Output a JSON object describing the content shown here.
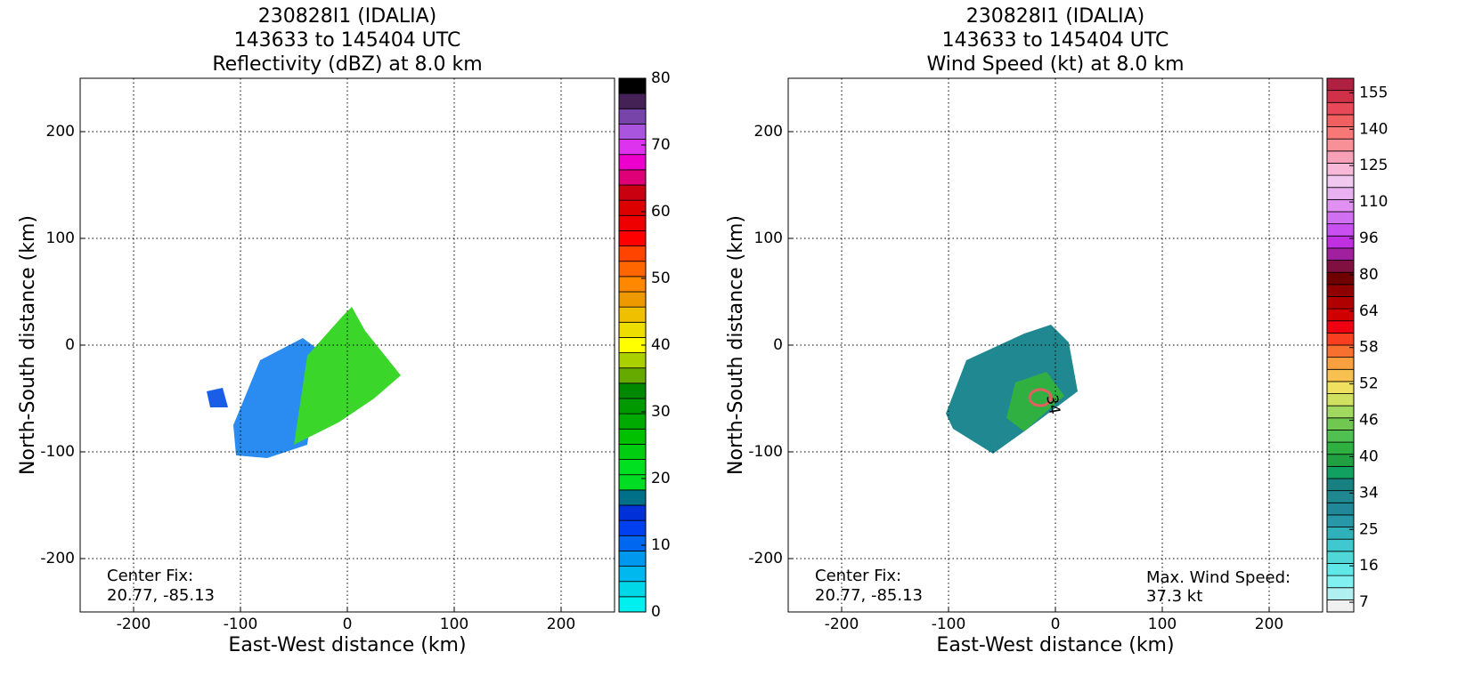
{
  "chart_data": [
    {
      "type": "heatmap",
      "title": [
        "230828I1 (IDALIA)",
        "143633 to 145404 UTC",
        "Reflectivity (dBZ) at 8.0 km"
      ],
      "xlabel": "East-West distance (km)",
      "ylabel": "North-South distance (km)",
      "xlim": [
        -250,
        250
      ],
      "ylim": [
        -250,
        250
      ],
      "xticks": [
        -200,
        -100,
        0,
        100,
        200
      ],
      "yticks": [
        -200,
        -100,
        0,
        100,
        200
      ],
      "grid": true,
      "annotations": [
        "Center Fix:",
        "20.77, -85.13"
      ],
      "colorbar": {
        "lim": [
          0,
          80
        ],
        "ticks": [
          0,
          10,
          20,
          30,
          40,
          50,
          60,
          70,
          80
        ],
        "colors": [
          "#00f0f0",
          "#00d8e8",
          "#00b8ee",
          "#0098ee",
          "#0068f0",
          "#0040f0",
          "#0030d8",
          "#007088",
          "#00dd22",
          "#00e020",
          "#00cc10",
          "#00c000",
          "#00aa00",
          "#009900",
          "#008800",
          "#66aa00",
          "#aad000",
          "#ffff00",
          "#eedd00",
          "#eec000",
          "#ee9900",
          "#ff8800",
          "#ff6600",
          "#ff4400",
          "#ff0000",
          "#ee0000",
          "#dd0000",
          "#c80010",
          "#dd0077",
          "#ee00cc",
          "#dd33ee",
          "#aa55dd",
          "#7744aa",
          "#442255",
          "#000000"
        ]
      }
    },
    {
      "type": "heatmap",
      "title": [
        "230828I1 (IDALIA)",
        "143633 to 145404 UTC",
        "Wind Speed (kt) at 8.0 km"
      ],
      "xlabel": "East-West distance (km)",
      "ylabel": "North-South distance (km)",
      "xlim": [
        -250,
        250
      ],
      "ylim": [
        -250,
        250
      ],
      "xticks": [
        -200,
        -100,
        0,
        100,
        200
      ],
      "yticks": [
        -200,
        -100,
        0,
        100,
        200
      ],
      "grid": true,
      "annotations": [
        "Center Fix:",
        "20.77, -85.13",
        "Max. Wind Speed:",
        "37.3 kt",
        "34"
      ],
      "colorbar": {
        "ticks": [
          7,
          16,
          25,
          34,
          40,
          46,
          52,
          58,
          64,
          80,
          96,
          110,
          125,
          140,
          155
        ],
        "colors": [
          "#f0f0f0",
          "#b0f0f0",
          "#80f0f0",
          "#60e8e8",
          "#50d8d8",
          "#40c8d0",
          "#30b0b8",
          "#2898a8",
          "#208898",
          "#208890",
          "#188080",
          "#10a060",
          "#20a040",
          "#30b040",
          "#50c050",
          "#70c850",
          "#a0d860",
          "#d0e060",
          "#f0e060",
          "#f8c050",
          "#f8a040",
          "#f87030",
          "#f84020",
          "#f00010",
          "#d00000",
          "#b00000",
          "#900000",
          "#700000",
          "#801040",
          "#a020a0",
          "#c030e0",
          "#c850f0",
          "#d070f0",
          "#e090f0",
          "#e8b0f0",
          "#f0c8f0",
          "#f8b8d8",
          "#f8a0b8",
          "#f89098",
          "#f87878",
          "#f06060",
          "#e84858",
          "#d03048",
          "#b02040"
        ]
      }
    }
  ]
}
